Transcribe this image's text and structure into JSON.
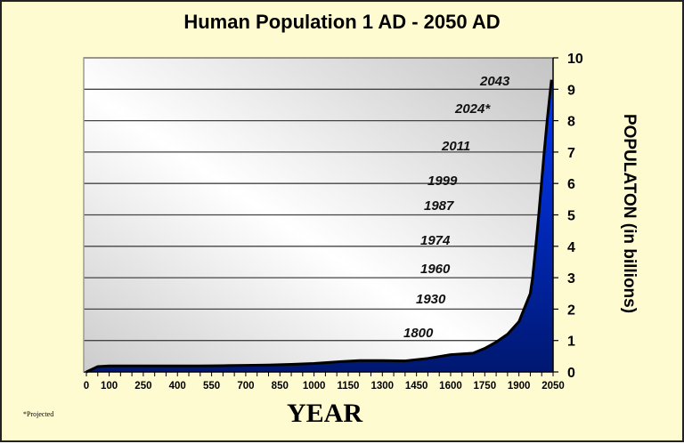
{
  "chart_data": {
    "type": "area",
    "title": "Human Population 1 AD - 2050 AD",
    "xlabel": "YEAR",
    "ylabel": "POPULATON (in billions)",
    "footnote": "*Projected",
    "x_tick_labels": [
      "0",
      "100",
      "250",
      "400",
      "550",
      "700",
      "850",
      "1000",
      "1150",
      "1300",
      "1450",
      "1600",
      "1750",
      "1900",
      "2050"
    ],
    "y_tick_labels": [
      "0",
      "1",
      "2",
      "3",
      "4",
      "5",
      "6",
      "7",
      "8",
      "9",
      "10"
    ],
    "ylim": [
      0,
      10
    ],
    "xlim": [
      0,
      2050
    ],
    "grid": true,
    "x": [
      0,
      50,
      100,
      200,
      300,
      400,
      500,
      600,
      700,
      800,
      900,
      1000,
      1100,
      1200,
      1300,
      1400,
      1500,
      1600,
      1700,
      1750,
      1800,
      1850,
      1900,
      1950,
      1960,
      1974,
      1987,
      1999,
      2011,
      2024,
      2043
    ],
    "values": [
      0.0,
      0.17,
      0.19,
      0.19,
      0.19,
      0.19,
      0.19,
      0.2,
      0.21,
      0.22,
      0.24,
      0.27,
      0.32,
      0.36,
      0.36,
      0.35,
      0.43,
      0.55,
      0.6,
      0.75,
      0.95,
      1.2,
      1.6,
      2.5,
      3.0,
      4.0,
      5.0,
      6.0,
      7.0,
      8.0,
      9.3
    ],
    "annotations": [
      {
        "label": "1800",
        "value": 1
      },
      {
        "label": "1930",
        "value": 2
      },
      {
        "label": "1960",
        "value": 3
      },
      {
        "label": "1974",
        "value": 4
      },
      {
        "label": "1987",
        "value": 5
      },
      {
        "label": "1999",
        "value": 6
      },
      {
        "label": "2011",
        "value": 7
      },
      {
        "label": "2024*",
        "value": 8
      },
      {
        "label": "2043",
        "value": 9
      }
    ],
    "colors": {
      "fill_top": "#0033ff",
      "fill_bottom": "#001a6e",
      "line": "#000000",
      "background": "#fffbd0"
    }
  }
}
